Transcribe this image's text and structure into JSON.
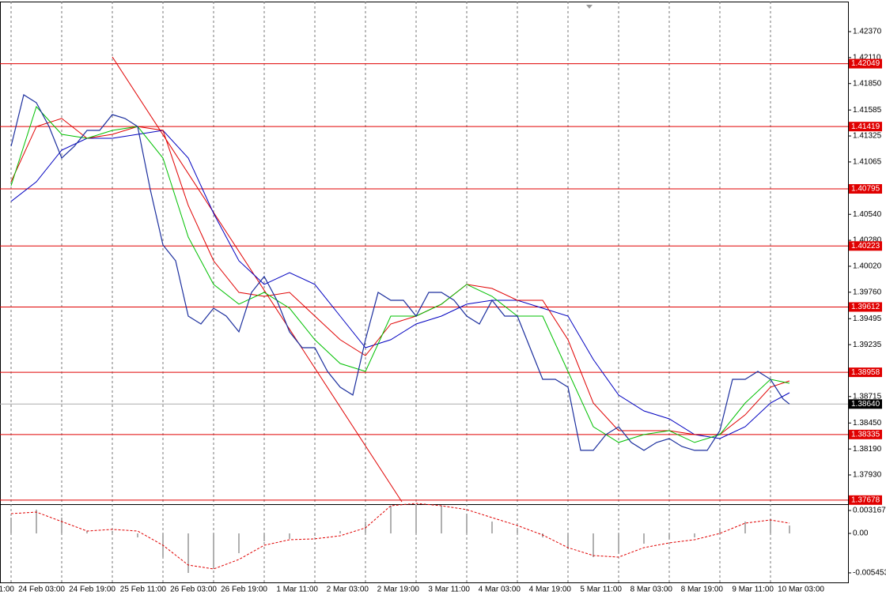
{
  "chart_data": [
    {
      "type": "line",
      "xlim": [
        -3.5,
        264.5
      ],
      "ylim": [
        1.37645,
        1.42671
      ],
      "grid": true,
      "xticks": [
        {
          "value": -16,
          "label": "1:00"
        },
        {
          "value": 0,
          "label": "24 Feb 03:00"
        },
        {
          "value": 16,
          "label": "24 Feb 19:00"
        },
        {
          "value": 32,
          "label": "25 Feb 11:00"
        },
        {
          "value": 48,
          "label": "26 Feb 03:00"
        },
        {
          "value": 64,
          "label": "26 Feb 19:00"
        },
        {
          "value": 80,
          "label": "1 Mar 11:00"
        },
        {
          "value": 96,
          "label": "2 Mar 03:00"
        },
        {
          "value": 112,
          "label": "2 Mar 19:00"
        },
        {
          "value": 128,
          "label": "3 Mar 11:00"
        },
        {
          "value": 144,
          "label": "4 Mar 03:00"
        },
        {
          "value": 160,
          "label": "4 Mar 19:00"
        },
        {
          "value": 176,
          "label": "5 Mar 11:00"
        },
        {
          "value": 192,
          "label": "8 Mar 03:00"
        },
        {
          "value": 208,
          "label": "8 Mar 19:00"
        },
        {
          "value": 224,
          "label": "9 Mar 11:00"
        },
        {
          "value": 240,
          "label": "10 Mar 03:00"
        }
      ],
      "yticks": [
        {
          "value": 1.4237,
          "label": "1.42370"
        },
        {
          "value": 1.4211,
          "label": "1.42110"
        },
        {
          "value": 1.4185,
          "label": "1.41850"
        },
        {
          "value": 1.41585,
          "label": "1.41585"
        },
        {
          "value": 1.41325,
          "label": "1.41325"
        },
        {
          "value": 1.41065,
          "label": "1.41065"
        },
        {
          "value": 1.4054,
          "label": "1.40540"
        },
        {
          "value": 1.4028,
          "label": "1.40280"
        },
        {
          "value": 1.4002,
          "label": "1.40020"
        },
        {
          "value": 1.3976,
          "label": "1.39760"
        },
        {
          "value": 1.39495,
          "label": "1.39495"
        },
        {
          "value": 1.39235,
          "label": "1.39235"
        },
        {
          "value": 1.38715,
          "label": "1.38715"
        },
        {
          "value": 1.3845,
          "label": "1.38450"
        },
        {
          "value": 1.3819,
          "label": "1.38190"
        },
        {
          "value": 1.3793,
          "label": "1.37930"
        }
      ],
      "levels": [
        1.42049,
        1.41419,
        1.40795,
        1.40223,
        1.39612,
        1.38958,
        1.38335,
        1.37678
      ],
      "level_color": "#e00000",
      "current_price": {
        "value": 1.3864,
        "label": "1.38640"
      },
      "trendline": {
        "x": [
          32,
          123.5
        ],
        "values": [
          1.42117,
          1.37661
        ],
        "color": "#e00000"
      },
      "series": [
        {
          "color": "#1c2f9e",
          "width": 1.2,
          "x": [
            0,
            4,
            8,
            12,
            16,
            20,
            24,
            28,
            32,
            36,
            40,
            44,
            48,
            52,
            56,
            60,
            64,
            68,
            72,
            76,
            80,
            84,
            88,
            92,
            96,
            100,
            104,
            108,
            112,
            116,
            120,
            124,
            128,
            132,
            136,
            140,
            144,
            148,
            152,
            156,
            160,
            164,
            168,
            172,
            176,
            180,
            184,
            188,
            192,
            196,
            200,
            204,
            208,
            212,
            216,
            220,
            224,
            228,
            232,
            236,
            240,
            244,
            246
          ],
          "values": [
            1.41222,
            1.41737,
            1.41658,
            1.4142,
            1.41104,
            1.41222,
            1.41381,
            1.41381,
            1.41539,
            1.415,
            1.4142,
            1.40787,
            1.40233,
            1.40075,
            1.39521,
            1.39442,
            1.396,
            1.39521,
            1.39363,
            1.39758,
            1.39917,
            1.39679,
            1.39363,
            1.39204,
            1.39204,
            1.38967,
            1.38809,
            1.3873,
            1.39284,
            1.39758,
            1.39679,
            1.39679,
            1.39521,
            1.39758,
            1.39758,
            1.39679,
            1.39521,
            1.39442,
            1.39679,
            1.39521,
            1.39521,
            1.39204,
            1.38888,
            1.38888,
            1.38809,
            1.38176,
            1.38176,
            1.38334,
            1.38413,
            1.38255,
            1.38176,
            1.38255,
            1.38294,
            1.38215,
            1.38176,
            1.38176,
            1.38373,
            1.38888,
            1.38888,
            1.38967,
            1.38888,
            1.3869,
            1.3864
          ]
        },
        {
          "color": "#00c000",
          "width": 1,
          "x": [
            0,
            8,
            16,
            24,
            32,
            40,
            48,
            56,
            64,
            72,
            80,
            88,
            96,
            104,
            112,
            120,
            128,
            136,
            144,
            152,
            160,
            168,
            176,
            184,
            192,
            200,
            208,
            216,
            224,
            232,
            240,
            246
          ],
          "values": [
            1.40827,
            1.41618,
            1.41341,
            1.41302,
            1.41381,
            1.4142,
            1.41104,
            1.40312,
            1.39838,
            1.3964,
            1.39758,
            1.396,
            1.39284,
            1.39046,
            1.38967,
            1.39521,
            1.39521,
            1.3964,
            1.39838,
            1.39719,
            1.39521,
            1.39521,
            1.38967,
            1.38413,
            1.38255,
            1.38334,
            1.38373,
            1.38255,
            1.38334,
            1.3865,
            1.38888,
            1.38848
          ]
        },
        {
          "color": "#e00000",
          "width": 1,
          "x": [
            0,
            8,
            16,
            24,
            32,
            40,
            48,
            56,
            64,
            72,
            80,
            88,
            96,
            104,
            112,
            120,
            128,
            136,
            144,
            152,
            160,
            168,
            176,
            184,
            192,
            200,
            208,
            216,
            224,
            232,
            240,
            246
          ],
          "values": [
            1.40866,
            1.4142,
            1.415,
            1.41302,
            1.41341,
            1.4142,
            1.41381,
            1.40629,
            1.40075,
            1.39758,
            1.39719,
            1.39758,
            1.39521,
            1.39284,
            1.39125,
            1.39442,
            1.39521,
            1.3964,
            1.39838,
            1.39798,
            1.39679,
            1.39679,
            1.39284,
            1.3865,
            1.38373,
            1.38373,
            1.38373,
            1.38334,
            1.38334,
            1.38532,
            1.38809,
            1.38872
          ]
        },
        {
          "color": "#0000c0",
          "width": 1,
          "x": [
            0,
            8,
            16,
            24,
            32,
            40,
            48,
            56,
            64,
            72,
            80,
            88,
            96,
            104,
            112,
            120,
            128,
            136,
            144,
            152,
            160,
            168,
            176,
            184,
            192,
            200,
            208,
            216,
            224,
            232,
            240,
            246
          ],
          "values": [
            1.40669,
            1.40866,
            1.41183,
            1.41302,
            1.41302,
            1.41341,
            1.41381,
            1.41104,
            1.4055,
            1.40075,
            1.39838,
            1.39956,
            1.39838,
            1.39521,
            1.39204,
            1.39284,
            1.39442,
            1.39521,
            1.3964,
            1.39679,
            1.39679,
            1.396,
            1.39521,
            1.39086,
            1.3873,
            1.38571,
            1.38492,
            1.38334,
            1.38294,
            1.38413,
            1.3865,
            1.38753
          ]
        }
      ]
    },
    {
      "type": "bar",
      "ylim": [
        -0.00688,
        0.00382
      ],
      "yticks": [
        0.003167,
        {
          "value": 0,
          "label": "0.00"
        },
        -0.005453
      ],
      "series": [
        {
          "color": "#b0b0b0",
          "x": [
            0,
            8,
            16,
            24,
            32,
            40,
            48,
            56,
            64,
            72,
            80,
            88,
            96,
            104,
            112,
            120,
            128,
            136,
            144,
            152,
            160,
            168,
            176,
            184,
            192,
            200,
            208,
            216,
            224,
            232,
            240,
            246
          ],
          "values": [
            0.00218,
            0.00328,
            0.00218,
            0.00033,
            0.00033,
            -0.00055,
            -0.00328,
            -0.00546,
            -0.00491,
            -0.00273,
            -0.00109,
            -0.00076,
            -0.00033,
            0.00033,
            0.00164,
            0.00382,
            0.00404,
            0.00382,
            0.00273,
            0.00164,
            0.00055,
            -0.00055,
            -0.00218,
            -0.00328,
            -0.00273,
            -0.00142,
            -0.00076,
            -0.00055,
            0.00055,
            0.00164,
            0.00197,
            0.00109
          ]
        },
        {
          "color": "#e00000",
          "dashed": true,
          "x": [
            0,
            8,
            16,
            24,
            32,
            40,
            48,
            56,
            64,
            72,
            80,
            88,
            96,
            104,
            112,
            120,
            128,
            136,
            144,
            152,
            160,
            168,
            176,
            184,
            192,
            200,
            208,
            216,
            224,
            232,
            240,
            246
          ],
          "values": [
            0.00273,
            0.00295,
            0.00164,
            0.00033,
            0.00055,
            0.00033,
            -0.00164,
            -0.00437,
            -0.00491,
            -0.0036,
            -0.00164,
            -0.00087,
            -0.00076,
            -0.00033,
            0.00076,
            0.00382,
            0.00415,
            0.00382,
            0.00328,
            0.00218,
            0.00109,
            -0.00022,
            -0.00197,
            -0.00306,
            -0.00328,
            -0.00197,
            -0.00131,
            -0.00087,
            0,
            0.00142,
            0.00186,
            0.00142
          ]
        }
      ]
    }
  ]
}
